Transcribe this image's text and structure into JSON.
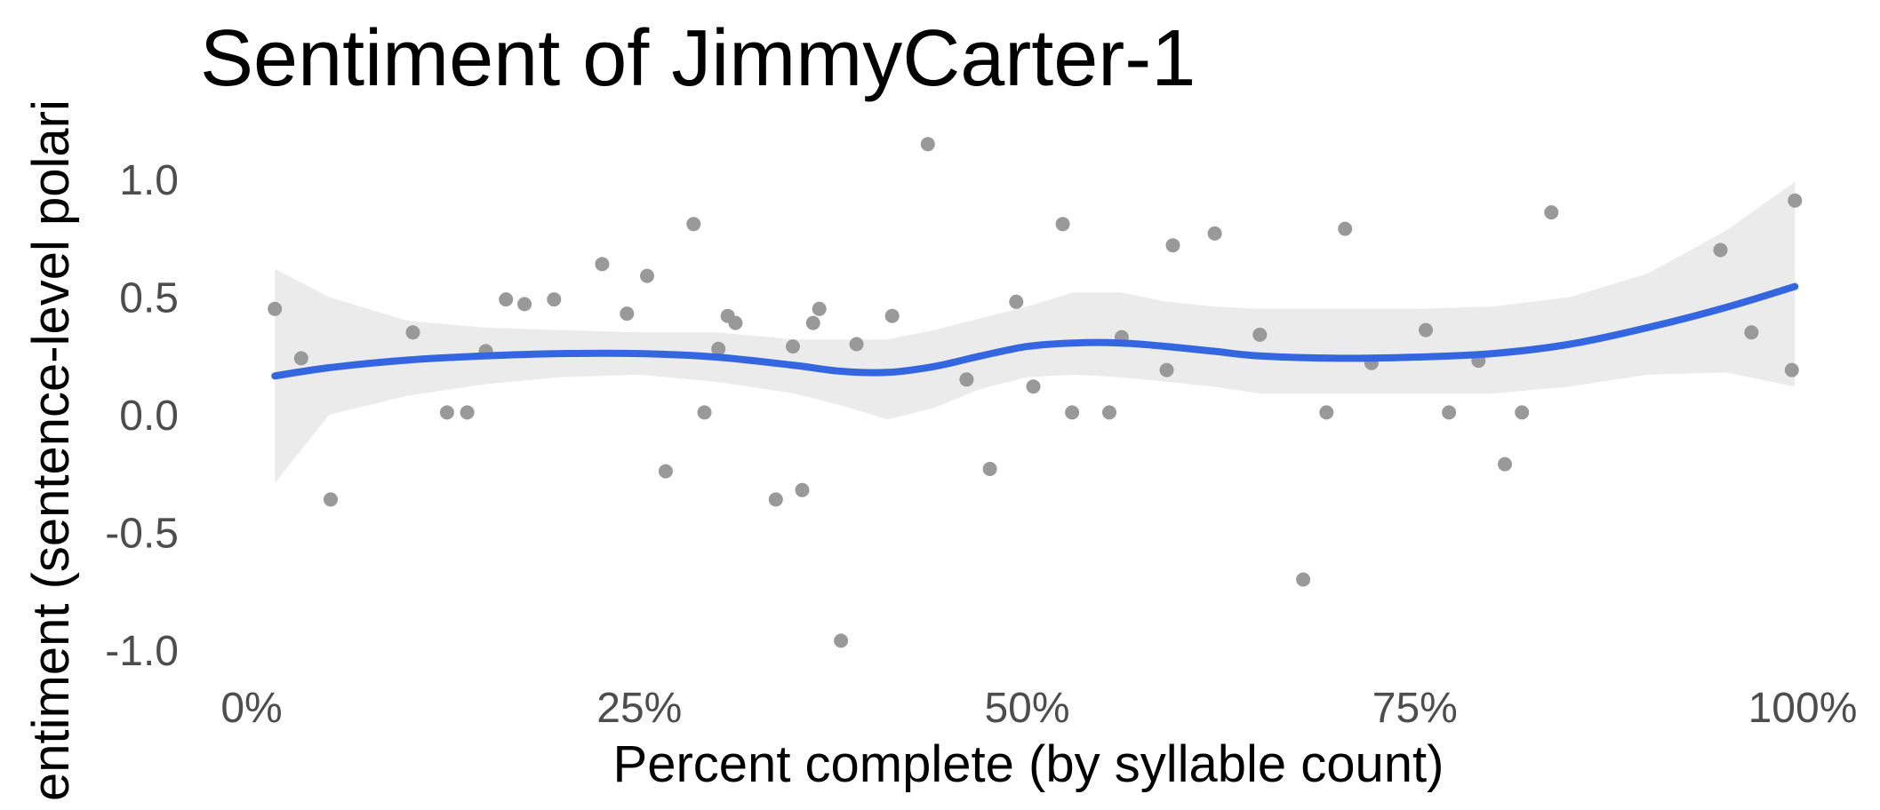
{
  "chart_data": {
    "type": "scatter",
    "title": "Sentiment of JimmyCarter-1",
    "xlabel": "Percent complete (by syllable count)",
    "ylabel": "entiment (sentence-level polari",
    "xlim": [
      0,
      100
    ],
    "ylim": [
      -1.0,
      1.0
    ],
    "x_ticks": [
      {
        "value": 0,
        "label": "0%"
      },
      {
        "value": 25,
        "label": "25%"
      },
      {
        "value": 50,
        "label": "50%"
      },
      {
        "value": 75,
        "label": "75%"
      },
      {
        "value": 100,
        "label": "100%"
      }
    ],
    "y_ticks": [
      {
        "value": 1.0,
        "label": "1.0"
      },
      {
        "value": 0.5,
        "label": "0.5"
      },
      {
        "value": 0.0,
        "label": "0.0"
      },
      {
        "value": -0.5,
        "label": "-0.5"
      },
      {
        "value": -1.0,
        "label": "-1.0"
      }
    ],
    "grid": false,
    "legend": "none",
    "colors": {
      "points": "#999999",
      "smooth_line": "#3366e0",
      "confidence_band": "#ebebeb"
    },
    "points": [
      {
        "x": 1.5,
        "y": 0.45
      },
      {
        "x": 3.2,
        "y": 0.24
      },
      {
        "x": 5.1,
        "y": -0.36
      },
      {
        "x": 10.4,
        "y": 0.35
      },
      {
        "x": 12.6,
        "y": 0.01
      },
      {
        "x": 13.9,
        "y": 0.01
      },
      {
        "x": 15.1,
        "y": 0.27
      },
      {
        "x": 16.4,
        "y": 0.49
      },
      {
        "x": 17.6,
        "y": 0.47
      },
      {
        "x": 19.5,
        "y": 0.49
      },
      {
        "x": 22.6,
        "y": 0.64
      },
      {
        "x": 24.2,
        "y": 0.43
      },
      {
        "x": 25.5,
        "y": 0.59
      },
      {
        "x": 26.7,
        "y": -0.24
      },
      {
        "x": 28.5,
        "y": 0.81
      },
      {
        "x": 29.2,
        "y": 0.01
      },
      {
        "x": 30.1,
        "y": 0.28
      },
      {
        "x": 30.7,
        "y": 0.42
      },
      {
        "x": 31.2,
        "y": 0.39
      },
      {
        "x": 33.8,
        "y": -0.36
      },
      {
        "x": 34.9,
        "y": 0.29
      },
      {
        "x": 35.5,
        "y": -0.32
      },
      {
        "x": 36.2,
        "y": 0.39
      },
      {
        "x": 36.6,
        "y": 0.45
      },
      {
        "x": 38.0,
        "y": -0.96
      },
      {
        "x": 39.0,
        "y": 0.3
      },
      {
        "x": 41.3,
        "y": 0.42
      },
      {
        "x": 43.6,
        "y": 1.15
      },
      {
        "x": 46.1,
        "y": 0.15
      },
      {
        "x": 47.6,
        "y": -0.23
      },
      {
        "x": 49.3,
        "y": 0.48
      },
      {
        "x": 50.4,
        "y": 0.12
      },
      {
        "x": 52.3,
        "y": 0.81
      },
      {
        "x": 52.9,
        "y": 0.01
      },
      {
        "x": 55.3,
        "y": 0.01
      },
      {
        "x": 56.1,
        "y": 0.33
      },
      {
        "x": 59.0,
        "y": 0.19
      },
      {
        "x": 59.4,
        "y": 0.72
      },
      {
        "x": 62.1,
        "y": 0.77
      },
      {
        "x": 65.0,
        "y": 0.34
      },
      {
        "x": 67.8,
        "y": -0.7
      },
      {
        "x": 69.3,
        "y": 0.01
      },
      {
        "x": 70.5,
        "y": 0.79
      },
      {
        "x": 72.2,
        "y": 0.22
      },
      {
        "x": 75.7,
        "y": 0.36
      },
      {
        "x": 77.2,
        "y": 0.01
      },
      {
        "x": 79.1,
        "y": 0.23
      },
      {
        "x": 80.8,
        "y": -0.21
      },
      {
        "x": 81.9,
        "y": 0.01
      },
      {
        "x": 83.8,
        "y": 0.86
      },
      {
        "x": 94.7,
        "y": 0.7
      },
      {
        "x": 96.7,
        "y": 0.35
      },
      {
        "x": 99.3,
        "y": 0.19
      },
      {
        "x": 99.5,
        "y": 0.91
      }
    ],
    "smooth": [
      {
        "x": 1.5,
        "y": 0.165,
        "lo": -0.29,
        "hi": 0.62
      },
      {
        "x": 5,
        "y": 0.2,
        "lo": 0.0,
        "hi": 0.5
      },
      {
        "x": 10,
        "y": 0.232,
        "lo": 0.08,
        "hi": 0.4
      },
      {
        "x": 15,
        "y": 0.25,
        "lo": 0.13,
        "hi": 0.37
      },
      {
        "x": 20,
        "y": 0.26,
        "lo": 0.16,
        "hi": 0.36
      },
      {
        "x": 25,
        "y": 0.26,
        "lo": 0.17,
        "hi": 0.35
      },
      {
        "x": 30,
        "y": 0.245,
        "lo": 0.14,
        "hi": 0.35
      },
      {
        "x": 35,
        "y": 0.21,
        "lo": 0.09,
        "hi": 0.32
      },
      {
        "x": 38,
        "y": 0.185,
        "lo": 0.04,
        "hi": 0.32
      },
      {
        "x": 41,
        "y": 0.18,
        "lo": -0.02,
        "hi": 0.32
      },
      {
        "x": 44,
        "y": 0.205,
        "lo": 0.03,
        "hi": 0.36
      },
      {
        "x": 47,
        "y": 0.25,
        "lo": 0.11,
        "hi": 0.41
      },
      {
        "x": 50,
        "y": 0.29,
        "lo": 0.16,
        "hi": 0.46
      },
      {
        "x": 53,
        "y": 0.305,
        "lo": 0.17,
        "hi": 0.52
      },
      {
        "x": 56,
        "y": 0.305,
        "lo": 0.16,
        "hi": 0.52
      },
      {
        "x": 59,
        "y": 0.29,
        "lo": 0.14,
        "hi": 0.48
      },
      {
        "x": 62,
        "y": 0.27,
        "lo": 0.12,
        "hi": 0.46
      },
      {
        "x": 65,
        "y": 0.25,
        "lo": 0.09,
        "hi": 0.45
      },
      {
        "x": 70,
        "y": 0.24,
        "lo": 0.09,
        "hi": 0.45
      },
      {
        "x": 75,
        "y": 0.245,
        "lo": 0.09,
        "hi": 0.45
      },
      {
        "x": 80,
        "y": 0.26,
        "lo": 0.09,
        "hi": 0.46
      },
      {
        "x": 85,
        "y": 0.3,
        "lo": 0.12,
        "hi": 0.5
      },
      {
        "x": 90,
        "y": 0.37,
        "lo": 0.17,
        "hi": 0.6
      },
      {
        "x": 95,
        "y": 0.455,
        "lo": 0.18,
        "hi": 0.78
      },
      {
        "x": 99.5,
        "y": 0.545,
        "lo": 0.12,
        "hi": 0.99
      }
    ]
  }
}
